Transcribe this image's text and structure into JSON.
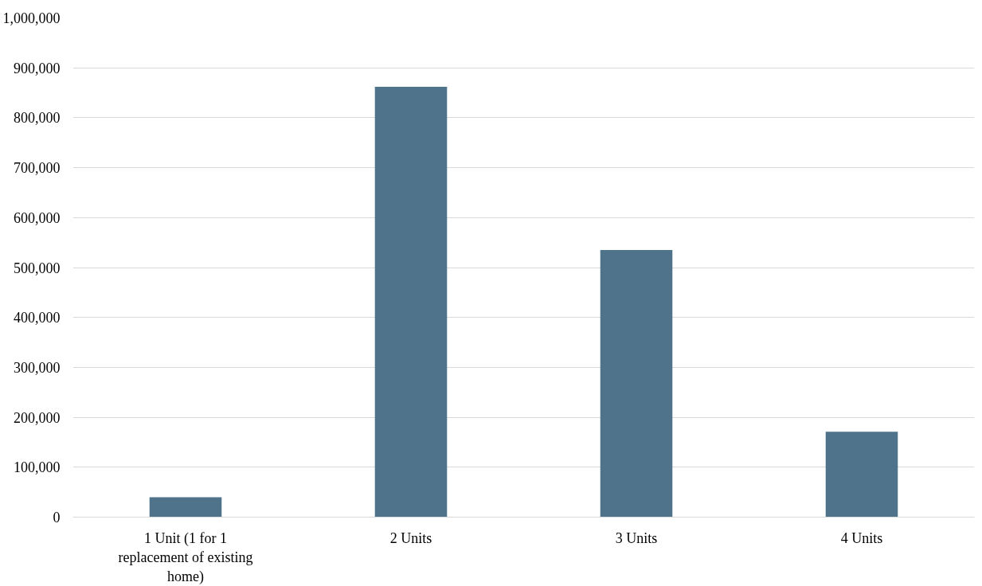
{
  "chart_data": {
    "type": "bar",
    "categories": [
      "1 Unit (1 for 1 replacement of existing home)",
      "2 Units",
      "3 Units",
      "4 Units"
    ],
    "values": [
      40000,
      862000,
      535000,
      171000
    ],
    "color": "#4e738a",
    "ylim": [
      0,
      1000000
    ],
    "yticks": [
      {
        "value": 0,
        "label": "0"
      },
      {
        "value": 100000,
        "label": "100,000"
      },
      {
        "value": 200000,
        "label": "200,000"
      },
      {
        "value": 300000,
        "label": "300,000"
      },
      {
        "value": 400000,
        "label": "400,000"
      },
      {
        "value": 500000,
        "label": "500,000"
      },
      {
        "value": 600000,
        "label": "600,000"
      },
      {
        "value": 700000,
        "label": "700,000"
      },
      {
        "value": 800000,
        "label": "800,000"
      },
      {
        "value": 900000,
        "label": "900,000"
      },
      {
        "value": 1000000,
        "label": "1,000,000"
      }
    ],
    "grid": "y"
  }
}
